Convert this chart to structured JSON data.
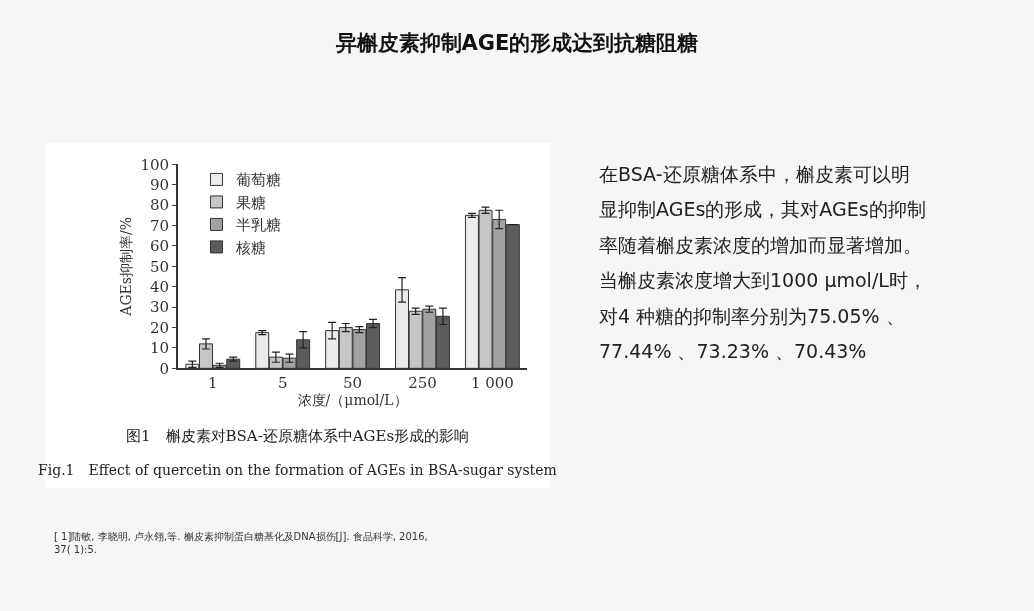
{
  "chart_data": {
    "type": "bar",
    "title": "异槲皮素抑制AGE的形成达到抗糖阻糖",
    "xlabel": "浓度/（μmol/L）",
    "ylabel": "AGEs抑制率/%",
    "categories": [
      "1",
      "5",
      "50",
      "250",
      "1 000"
    ],
    "series": [
      {
        "name": "葡萄糖",
        "color": "#ebebeb",
        "values": [
          2,
          17.5,
          18.5,
          38.5,
          75
        ],
        "errors": [
          1.5,
          1,
          4,
          6,
          1
        ]
      },
      {
        "name": "果糖",
        "color": "#c6c6c6",
        "values": [
          12,
          5.5,
          20,
          28,
          77.5
        ],
        "errors": [
          2.5,
          2.5,
          2,
          1.5,
          1.5
        ]
      },
      {
        "name": "半乳糖",
        "color": "#a2a2a2",
        "values": [
          1.5,
          5,
          19,
          29,
          73
        ],
        "errors": [
          1,
          2,
          1.5,
          1.5,
          4.5
        ]
      },
      {
        "name": "核糖",
        "color": "#5c5c5c",
        "values": [
          4.5,
          14,
          22,
          25.5,
          70.5
        ],
        "errors": [
          1,
          4,
          2,
          4,
          null
        ]
      }
    ],
    "ylim": [
      0,
      100
    ],
    "yticks": [
      0,
      10,
      20,
      30,
      40,
      50,
      60,
      70,
      80,
      90,
      100
    ],
    "legend": "top left",
    "annotations": [
      "图1　槲皮素对BSA-还原糖体系中AGEs形成的影响",
      "Fig.1　Effect of quercetin on the formation of AGEs in BSA-sugar system",
      "[ 1]陆敏, 李晓明, 卢永翎,等. 槲皮素抑制蛋白糖基化及DNA损伤[J]. 食品科学, 2016,\n37( 1):5.",
      "在BSA-还原糖体系中，槲皮素可以明",
      "显抑制AGEs的形成，其对AGEs的抑制",
      "率随着槲皮素浓度的增加而显著增加。",
      "当槲皮素浓度增大到1000 μmol/L时，",
      "对4 种糖的抑制率分别为75.05% 、",
      "77.44% 、73.23% 、70.43%"
    ]
  }
}
